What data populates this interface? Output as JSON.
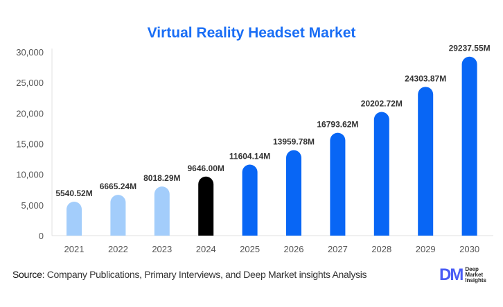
{
  "chart_data": {
    "type": "bar",
    "title": "Virtual Reality Headset Market",
    "categories": [
      "2021",
      "2022",
      "2023",
      "2024",
      "2025",
      "2026",
      "2027",
      "2028",
      "2029",
      "2030"
    ],
    "values": [
      5540.52,
      6665.24,
      8018.29,
      9646.0,
      11604.14,
      13959.78,
      16793.62,
      20202.72,
      24303.87,
      29237.55
    ],
    "data_labels": [
      "5540.52M",
      "6665.24M",
      "8018.29M",
      "9646.00M",
      "11604.14M",
      "13959.78M",
      "16793.62M",
      "20202.72M",
      "24303.87M",
      "29237.55M"
    ],
    "yticks": [
      "0",
      "5,000",
      "10,000",
      "15,000",
      "20,000",
      "25,000",
      "30,000"
    ],
    "ylim": [
      0,
      30000
    ],
    "grid": false,
    "colors": {
      "historical": "#a3cdfb",
      "current": "#000000",
      "forecast": "#0866f5"
    },
    "bar_color_groups": [
      "historical",
      "historical",
      "historical",
      "current",
      "forecast",
      "forecast",
      "forecast",
      "forecast",
      "forecast",
      "forecast"
    ]
  },
  "source": {
    "label": "Source",
    "text": ": Company Publications, Primary Interviews, and Deep Market insights Analysis"
  },
  "logo": {
    "mark": "DM",
    "text": "Deep Market Insights"
  }
}
